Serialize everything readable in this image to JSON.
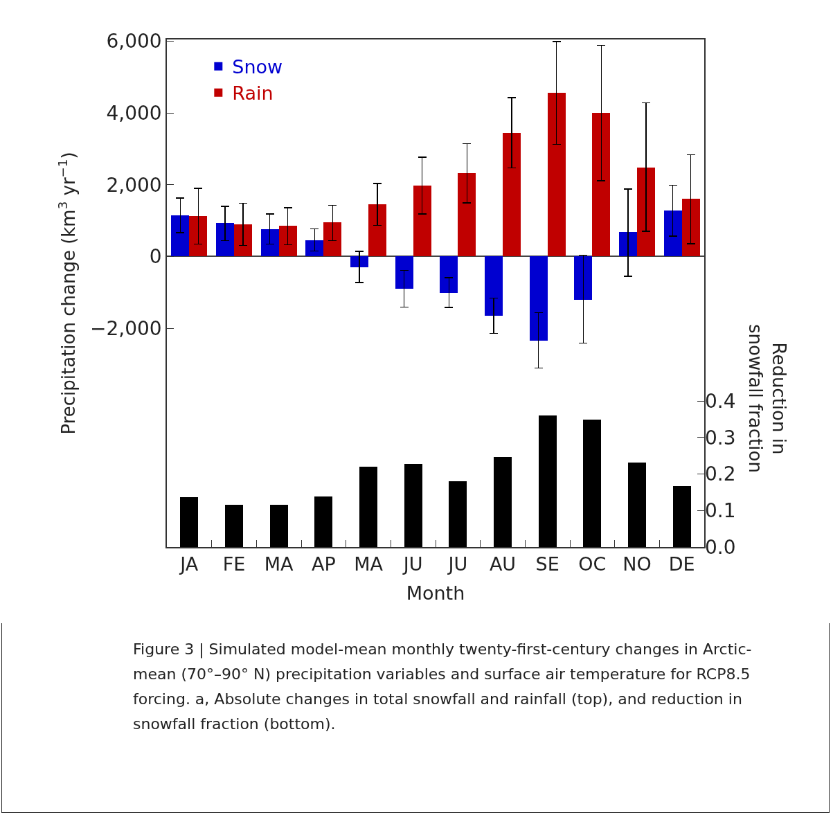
{
  "chart_data": {
    "type": "bar",
    "xlabel": "Month",
    "ylabel": "Precipitation change (km$^{3}$ yr$^{−1}$)",
    "y2label": "Reduction in snowfall fraction",
    "legend": "top left",
    "categories": [
      "JA",
      "FE",
      "MA",
      "AP",
      "MA",
      "JU",
      "JU",
      "AU",
      "SE",
      "OC",
      "NO",
      "DE"
    ],
    "ylim": [
      -8100,
      6050
    ],
    "yticks": [
      {
        "value": -2000,
        "label": "−2,000"
      },
      0,
      {
        "value": 2000,
        "label": "2,000"
      },
      {
        "value": 4000,
        "label": "4,000"
      },
      {
        "value": 6000,
        "label": "6,000"
      }
    ],
    "y2lim": [
      0,
      1.39
    ],
    "y2ticks": [
      {
        "value": 0,
        "label": "0.0"
      },
      0.1,
      0.2,
      0.3,
      0.4
    ],
    "series": [
      {
        "name": "Snow",
        "color": "#0000d0",
        "values": [
          1150,
          930,
          770,
          450,
          -310,
          -900,
          -1010,
          -1650,
          -2340,
          -1200,
          680,
          1280
        ],
        "errors": [
          [
            660,
            1630
          ],
          [
            440,
            1400
          ],
          [
            350,
            1190
          ],
          [
            150,
            770
          ],
          [
            -730,
            140
          ],
          [
            -1410,
            -390
          ],
          [
            -1420,
            -590
          ],
          [
            -2140,
            -1160
          ],
          [
            -3110,
            -1570
          ],
          [
            -2410,
            40
          ],
          [
            -550,
            1880
          ],
          [
            570,
            1990
          ]
        ]
      },
      {
        "name": "Rain",
        "color": "#c00000",
        "values": [
          1120,
          900,
          860,
          950,
          1450,
          1970,
          2320,
          3450,
          4570,
          4000,
          2480,
          1610
        ],
        "errors": [
          [
            350,
            1900
          ],
          [
            310,
            1480
          ],
          [
            330,
            1360
          ],
          [
            440,
            1430
          ],
          [
            870,
            2030
          ],
          [
            1190,
            2770
          ],
          [
            1490,
            3140
          ],
          [
            2470,
            4430
          ],
          [
            3130,
            5990
          ],
          [
            2110,
            5890
          ],
          [
            700,
            4280
          ],
          [
            360,
            2840
          ]
        ]
      },
      {
        "color": "#000000",
        "axis": "y2",
        "values": [
          0.137,
          0.115,
          0.115,
          0.138,
          0.22,
          0.228,
          0.18,
          0.247,
          0.361,
          0.349,
          0.232,
          0.166
        ]
      }
    ],
    "annotations": [
      "Figure 3 | Simulated model-mean monthly twenty-first-century changes in Arctic-mean (70°–90° N) precipitation variables and surface air temperature for RCP8.5 forcing. a, Absolute changes in total snowfall and rainfall (top), and reduction in snowfall fraction (bottom)."
    ]
  }
}
